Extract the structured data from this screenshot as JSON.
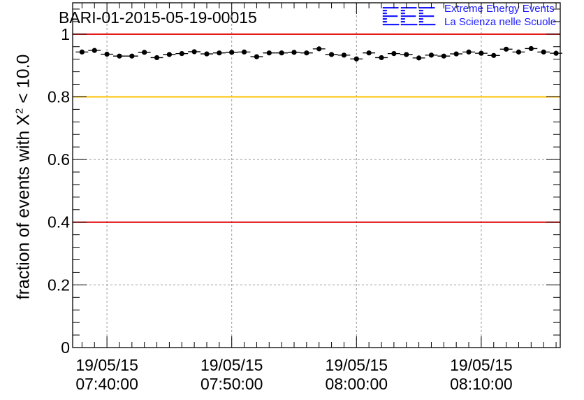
{
  "header": {
    "title": "BARI-01-2015-05-19-00015",
    "logo_mark": "EEE",
    "logo_line1": "Extreme Energy Events",
    "logo_line2": "La Scienza nelle Scuole"
  },
  "y_axis_label": {
    "prefix": "fraction of events with Χ",
    "sup": "2",
    "suffix": " < 10.0"
  },
  "colors": {
    "logo_blue": "#1a1aff",
    "red_line": "#e00000",
    "yellow_line": "#ffc000",
    "grid": "#9a9a9a",
    "points": "#000000"
  },
  "chart_data": {
    "type": "scatter",
    "title": "BARI-01-2015-05-19-00015",
    "xlabel": "",
    "ylabel": "fraction of events with Χ² < 10.0",
    "ylim": [
      0,
      1.1
    ],
    "xlim": [
      "2015-05-19 07:37:15",
      "2015-05-19 08:16:20"
    ],
    "grid": true,
    "x_ticks": [
      {
        "date": "19/05/15",
        "time": "07:40:00"
      },
      {
        "date": "19/05/15",
        "time": "07:50:00"
      },
      {
        "date": "19/05/15",
        "time": "08:00:00"
      },
      {
        "date": "19/05/15",
        "time": "08:10:00"
      }
    ],
    "y_ticks": [
      "0",
      "0.2",
      "0.4",
      "0.6",
      "0.8",
      "1"
    ],
    "reference_lines": [
      {
        "y": 1.0,
        "color": "#e00000"
      },
      {
        "y": 0.8,
        "color": "#ffc000"
      },
      {
        "y": 0.4,
        "color": "#e00000"
      }
    ],
    "x": [
      "07:38:00",
      "07:39:00",
      "07:40:00",
      "07:41:00",
      "07:42:00",
      "07:43:00",
      "07:44:00",
      "07:45:00",
      "07:46:00",
      "07:47:00",
      "07:48:00",
      "07:49:00",
      "07:50:00",
      "07:51:00",
      "07:52:00",
      "07:53:00",
      "07:54:00",
      "07:55:00",
      "07:56:00",
      "07:57:00",
      "07:58:00",
      "07:59:00",
      "08:00:00",
      "08:01:00",
      "08:02:00",
      "08:03:00",
      "08:04:00",
      "08:05:00",
      "08:06:00",
      "08:07:00",
      "08:08:00",
      "08:09:00",
      "08:10:00",
      "08:11:00",
      "08:12:00",
      "08:13:00",
      "08:14:00",
      "08:15:00",
      "08:16:00"
    ],
    "values": [
      0.943,
      0.948,
      0.936,
      0.93,
      0.93,
      0.942,
      0.925,
      0.935,
      0.938,
      0.944,
      0.937,
      0.94,
      0.942,
      0.943,
      0.928,
      0.94,
      0.94,
      0.942,
      0.94,
      0.953,
      0.935,
      0.933,
      0.921,
      0.94,
      0.925,
      0.938,
      0.935,
      0.924,
      0.933,
      0.93,
      0.937,
      0.943,
      0.939,
      0.932,
      0.952,
      0.943,
      0.954,
      0.943,
      0.939
    ]
  }
}
